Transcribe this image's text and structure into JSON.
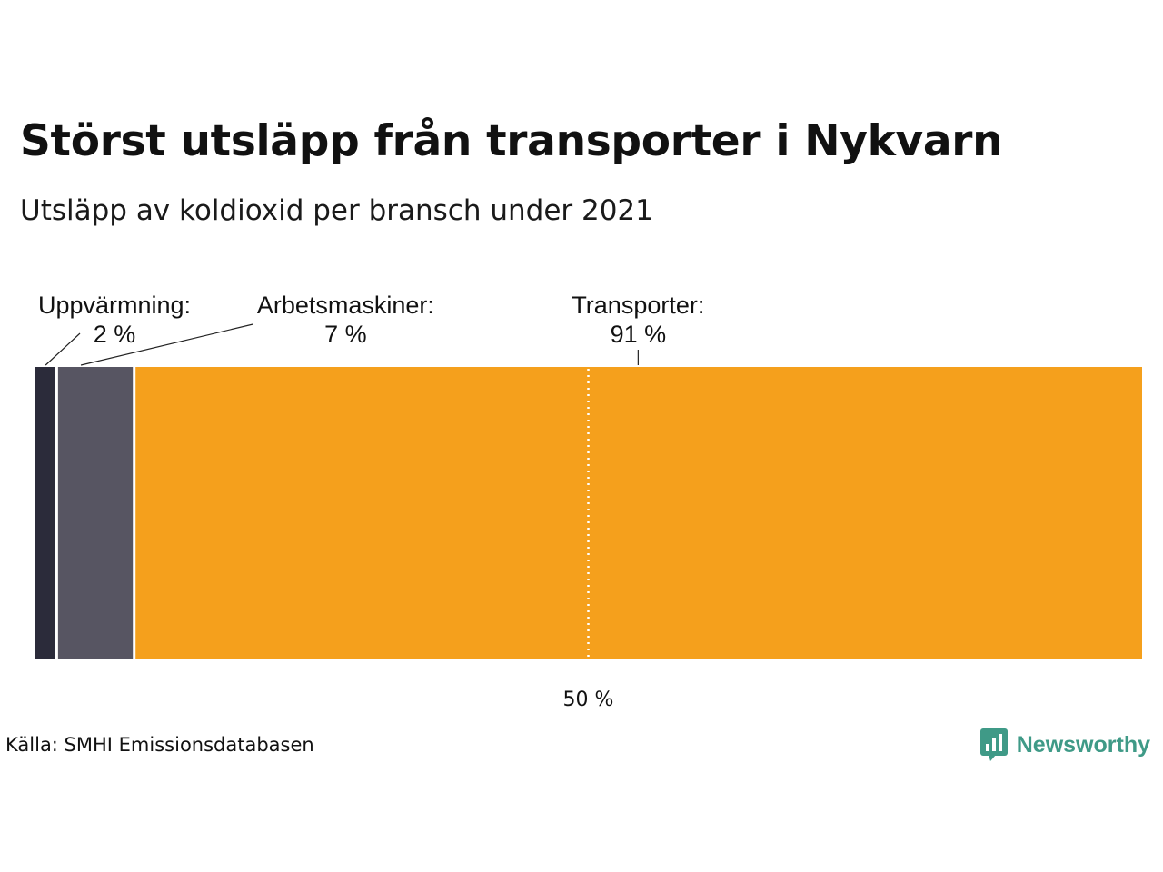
{
  "title": "Störst utsläpp från transporter i Nykvarn",
  "subtitle": "Utsläpp av koldioxid per bransch under 2021",
  "source": "Källa: SMHI Emissionsdatabasen",
  "brand": {
    "name": "Newsworthy",
    "icon": "bar-chart-speech-bubble-icon",
    "color": "#3f9a87"
  },
  "chart_data": {
    "type": "bar",
    "orientation": "horizontal-stacked",
    "unit": "%",
    "xlim": [
      0,
      100
    ],
    "categories": [
      "Uppvärmning:",
      "Arbetsmaskiner:",
      "Transporter:"
    ],
    "values": [
      2,
      7,
      91
    ],
    "value_labels": [
      "2 %",
      "7 %",
      "91 %"
    ],
    "colors": [
      "#2b2b3a",
      "#575562",
      "#f5a01c"
    ],
    "reference_line": {
      "value": 50,
      "label": "50 %"
    }
  }
}
